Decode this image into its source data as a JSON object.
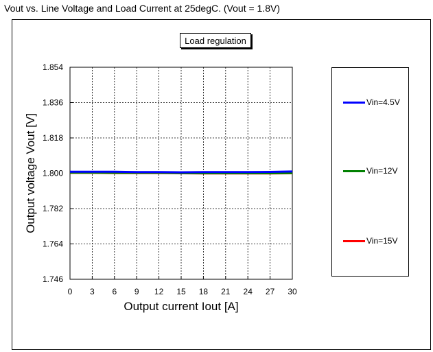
{
  "caption": "Vout vs. Line Voltage and Load Current at 25degC. (Vout = 1.8V)",
  "chart_data": {
    "type": "line",
    "title": "Load regulation",
    "xlabel": "Output current Iout [A]",
    "ylabel": "Output voltage Vout [V]",
    "xlim": [
      0,
      30
    ],
    "ylim": [
      1.746,
      1.854
    ],
    "x_ticks": [
      "0",
      "3",
      "6",
      "9",
      "12",
      "15",
      "18",
      "21",
      "24",
      "27",
      "30"
    ],
    "y_ticks": [
      "1.854",
      "1.836",
      "1.818",
      "1.800",
      "1.782",
      "1.764",
      "1.746"
    ],
    "grid": true,
    "legend_position": "right",
    "x": [
      0,
      3,
      6,
      9,
      12,
      15,
      18,
      21,
      24,
      27,
      30
    ],
    "series": [
      {
        "name": "Vin=4.5V",
        "color": "#0000ff",
        "values": [
          1.8008,
          1.8008,
          1.8008,
          1.8006,
          1.8006,
          1.8005,
          1.8006,
          1.8006,
          1.8006,
          1.8007,
          1.8009
        ]
      },
      {
        "name": "Vin=12V",
        "color": "#008000",
        "values": [
          1.8003,
          1.8003,
          1.8002,
          1.8002,
          1.8002,
          1.8001,
          1.8,
          1.8,
          1.8,
          1.8,
          1.8001
        ]
      },
      {
        "name": "Vin=15V",
        "color": "#ff0000",
        "values": [
          1.8002,
          1.8002,
          1.8001,
          1.8001,
          1.8001,
          1.8,
          1.7999,
          1.7999,
          1.7999,
          1.7999,
          1.8
        ]
      }
    ]
  }
}
